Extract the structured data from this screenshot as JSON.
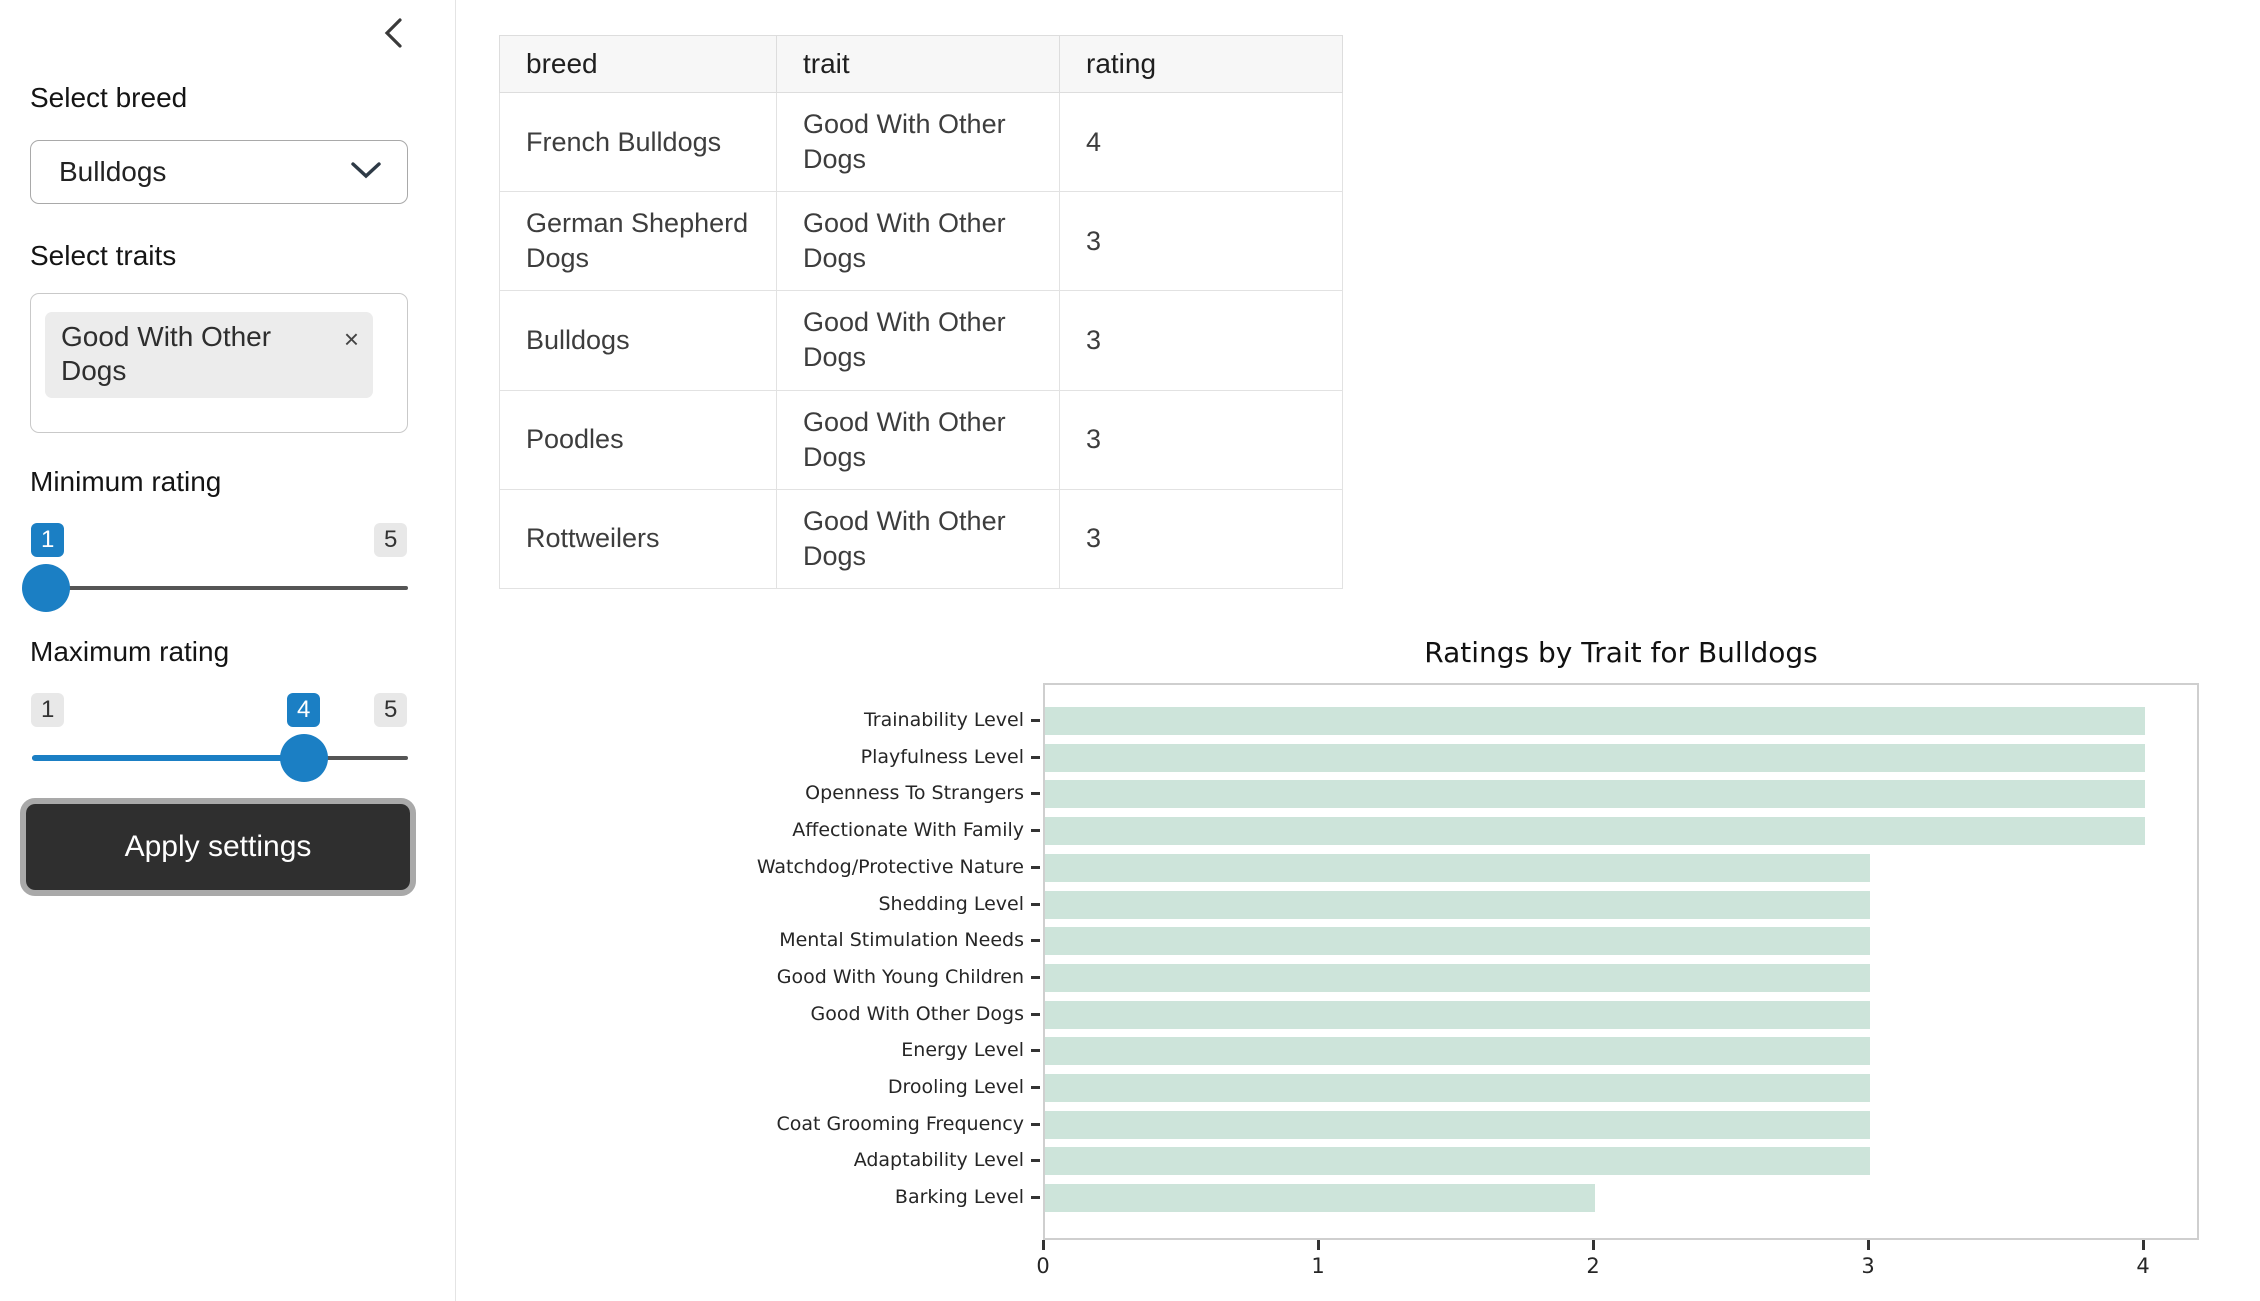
{
  "sidebar": {
    "collapse_icon": "chevron-left",
    "breed": {
      "label": "Select breed",
      "value": "Bulldogs"
    },
    "traits": {
      "label": "Select traits",
      "selected_tag": "Good With Other Dogs",
      "remove_glyph": "×"
    },
    "min_rating": {
      "label": "Minimum rating",
      "value": "1",
      "min_badge": "1",
      "max_badge": "5"
    },
    "max_rating": {
      "label": "Maximum rating",
      "value": "4",
      "min_badge": "1",
      "max_badge": "5"
    },
    "apply_button": "Apply settings"
  },
  "table": {
    "columns": [
      "breed",
      "trait",
      "rating"
    ],
    "rows": [
      [
        "French Bulldogs",
        "Good With Other Dogs",
        "4"
      ],
      [
        "German Shepherd Dogs",
        "Good With Other Dogs",
        "3"
      ],
      [
        "Bulldogs",
        "Good With Other Dogs",
        "3"
      ],
      [
        "Poodles",
        "Good With Other Dogs",
        "3"
      ],
      [
        "Rottweilers",
        "Good With Other Dogs",
        "3"
      ]
    ]
  },
  "chart_data": {
    "type": "bar",
    "orientation": "horizontal",
    "title": "Ratings by Trait for Bulldogs",
    "categories": [
      "Trainability Level",
      "Playfulness Level",
      "Openness To Strangers",
      "Affectionate With Family",
      "Watchdog/Protective Nature",
      "Shedding Level",
      "Mental Stimulation Needs",
      "Good With Young Children",
      "Good With Other Dogs",
      "Energy Level",
      "Drooling Level",
      "Coat Grooming Frequency",
      "Adaptability Level",
      "Barking Level"
    ],
    "values": [
      4,
      4,
      4,
      4,
      3,
      3,
      3,
      3,
      3,
      3,
      3,
      3,
      3,
      2
    ],
    "xlabel": "",
    "ylabel": "",
    "xlim": [
      0,
      4.2
    ],
    "xticks": [
      0,
      1,
      2,
      3,
      4
    ],
    "grid": false,
    "legend": false,
    "bar_color": "#cde4da"
  },
  "colors": {
    "accent_blue": "#1b7fc4",
    "bar_green": "#cde4da",
    "button_bg": "#2f2f2f",
    "track_gray": "#555555"
  }
}
